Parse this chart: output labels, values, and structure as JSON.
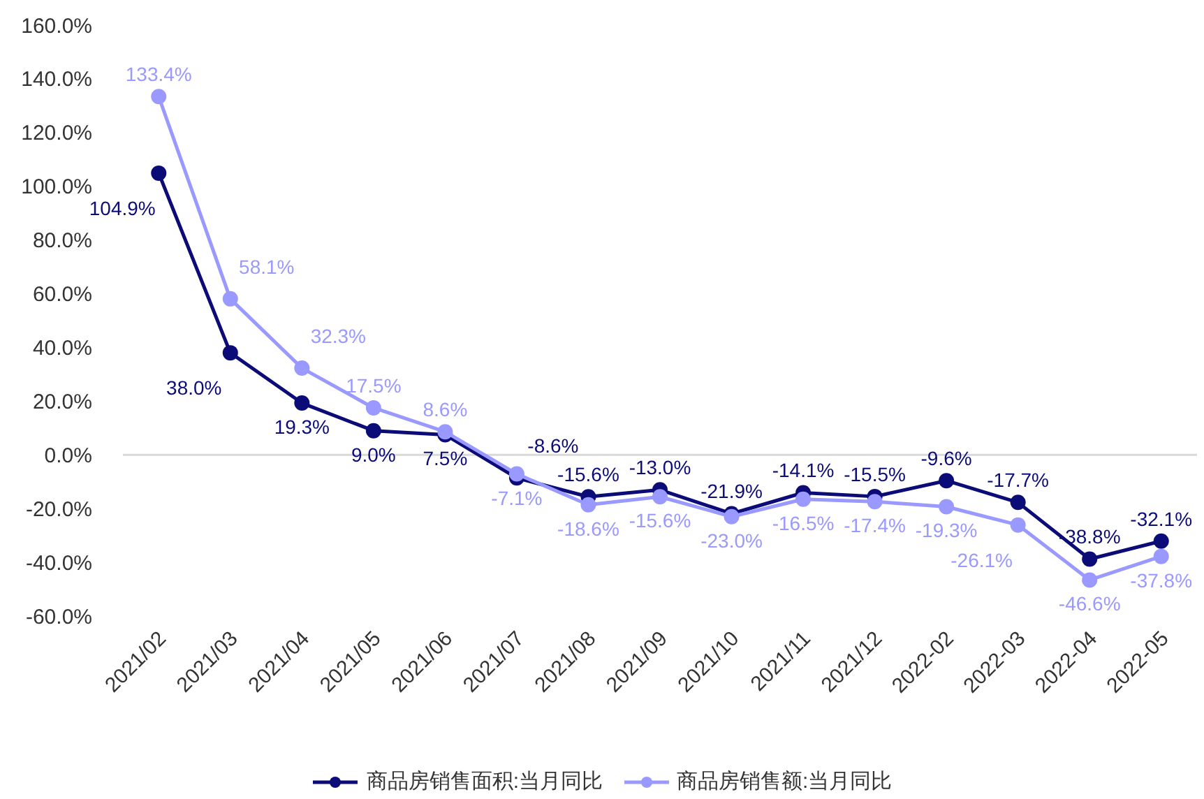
{
  "chart_data": {
    "type": "line",
    "categories": [
      "2021/02",
      "2021/03",
      "2021/04",
      "2021/05",
      "2021/06",
      "2021/07",
      "2021/08",
      "2021/09",
      "2021/10",
      "2021/11",
      "2021/12",
      "2022-02",
      "2022-03",
      "2022-04",
      "2022-05"
    ],
    "series": [
      {
        "name": "商品房销售面积:当月同比",
        "color": "#0c0c78",
        "values": [
          104.9,
          38.0,
          19.3,
          9.0,
          7.5,
          -8.6,
          -15.6,
          -13.0,
          -21.9,
          -14.1,
          -15.5,
          -9.6,
          -17.7,
          -38.8,
          -32.1
        ],
        "value_labels": [
          "104.9%",
          "38.0%",
          "19.3%",
          "9.0%",
          "7.5%",
          "-8.6%",
          "-15.6%",
          "-13.0%",
          "-21.9%",
          "-14.1%",
          "-15.5%",
          "-9.6%",
          "-17.7%",
          "-38.8%",
          "-32.1%"
        ]
      },
      {
        "name": "商品房销售额:当月同比",
        "color": "#9999ff",
        "values": [
          133.4,
          58.1,
          32.3,
          17.5,
          8.6,
          -7.1,
          -18.6,
          -15.6,
          -23.0,
          -16.5,
          -17.4,
          -19.3,
          -26.1,
          -46.6,
          -37.8
        ],
        "value_labels": [
          "133.4%",
          "58.1%",
          "32.3%",
          "17.5%",
          "8.6%",
          "-7.1%",
          "-18.6%",
          "-15.6%",
          "-23.0%",
          "-16.5%",
          "-17.4%",
          "-19.3%",
          "-26.1%",
          "-46.6%",
          "-37.8%"
        ]
      }
    ],
    "ylim": [
      -60,
      160
    ],
    "yticks": [
      {
        "value": -60,
        "label": "-60.0%"
      },
      {
        "value": -40,
        "label": "-40.0%"
      },
      {
        "value": -20,
        "label": "-20.0%"
      },
      {
        "value": 0,
        "label": "0.0%"
      },
      {
        "value": 20,
        "label": "20.0%"
      },
      {
        "value": 40,
        "label": "40.0%"
      },
      {
        "value": 60,
        "label": "60.0%"
      },
      {
        "value": 80,
        "label": "80.0%"
      },
      {
        "value": 100,
        "label": "100.0%"
      },
      {
        "value": 120,
        "label": "120.0%"
      },
      {
        "value": 140,
        "label": "140.0%"
      },
      {
        "value": 160,
        "label": "160.0%"
      }
    ],
    "legend": "bottom",
    "marker": "circle",
    "line_style": "solid"
  }
}
